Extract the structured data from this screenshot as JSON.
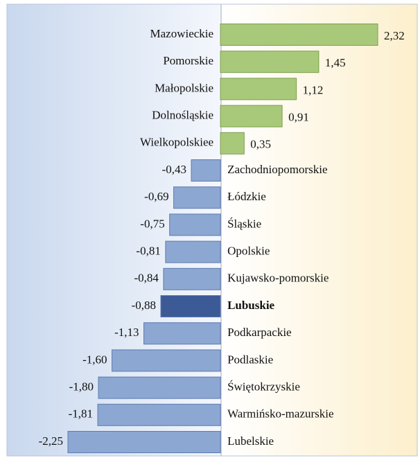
{
  "chart_data": {
    "type": "bar",
    "orientation": "horizontal",
    "categories": [
      "Mazowieckie",
      "Pomorskie",
      "Małopolskie",
      "Dolnośląskie",
      "Wielkopolskiee",
      "Zachodniopomorskie",
      "Łódzkie",
      "Śląskie",
      "Opolskie",
      "Kujawsko-pomorskie",
      "Lubuskie",
      "Podkarpackie",
      "Podlaskie",
      "Świętokrzyskie",
      "Warmińsko-mazurskie",
      "Lubelskie"
    ],
    "values": [
      2.32,
      1.45,
      1.12,
      0.91,
      0.35,
      -0.43,
      -0.69,
      -0.75,
      -0.81,
      -0.84,
      -0.88,
      -1.13,
      -1.6,
      -1.8,
      -1.81,
      -2.25
    ],
    "value_labels": [
      "2,32",
      "1,45",
      "1,12",
      "0,91",
      "0,35",
      "-0,43",
      "-0,69",
      "-0,75",
      "-0,81",
      "-0,84",
      "-0,88",
      "-1,13",
      "-1,60",
      "-1,80",
      "-1,81",
      "-2,25"
    ],
    "xlim": [
      -2.25,
      2.32
    ],
    "color_positive": "#a9c97a",
    "color_negative": "#8ca7d2",
    "highlight_index": 10,
    "highlight_color": "#3b5a96"
  }
}
